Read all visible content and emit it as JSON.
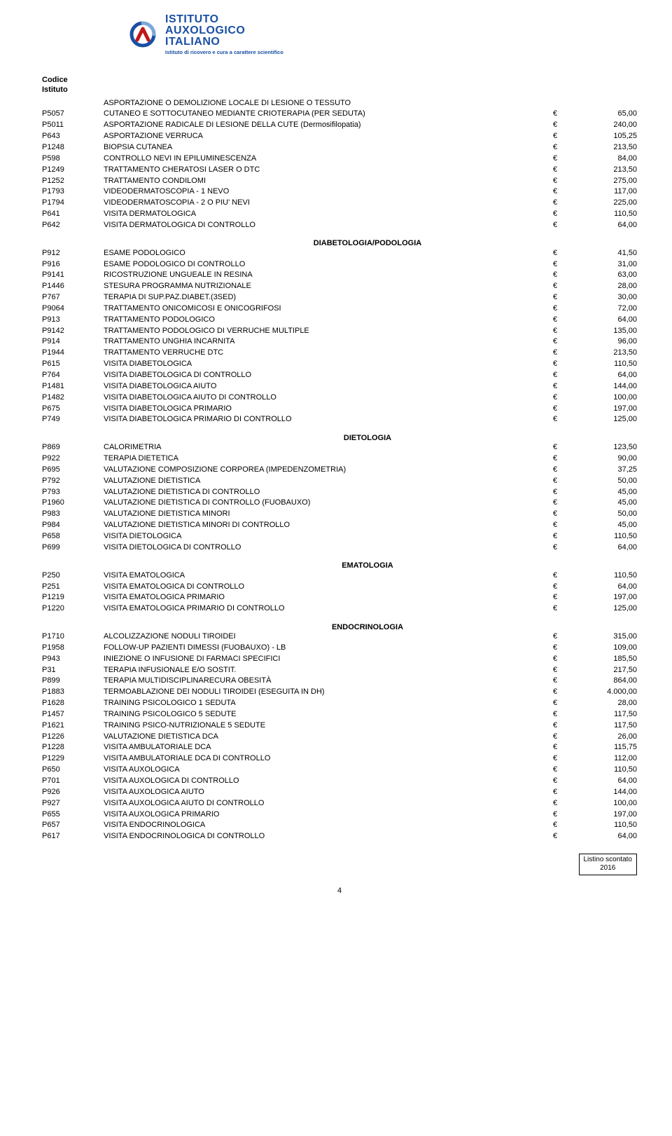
{
  "logo": {
    "line1": "ISTITUTO",
    "line2": "AUXOLOGICO",
    "line3": "ITALIANO",
    "tagline": "Istituto di ricovero e cura a carattere scientifico",
    "arc_color": "#1a4fa3",
    "arrow_color": "#c01818"
  },
  "header": {
    "label1": "Codice",
    "label2": "Istituto"
  },
  "sections": [
    {
      "title": "",
      "rows": [
        {
          "code": "",
          "desc": "ASPORTAZIONE O DEMOLIZIONE LOCALE DI LESIONE O TESSUTO",
          "eur": "",
          "amount": ""
        },
        {
          "code": "P5057",
          "desc": "CUTANEO E SOTTOCUTANEO MEDIANTE CRIOTERAPIA    (PER SEDUTA)",
          "eur": "€",
          "amount": "65,00"
        },
        {
          "code": "P5011",
          "desc": "ASPORTAZIONE RADICALE DI LESIONE DELLA CUTE (Dermosifilopatia)",
          "eur": "€",
          "amount": "240,00"
        },
        {
          "code": "P643",
          "desc": "ASPORTAZIONE VERRUCA",
          "eur": "€",
          "amount": "105,25"
        },
        {
          "code": "P1248",
          "desc": "BIOPSIA CUTANEA",
          "eur": "€",
          "amount": "213,50"
        },
        {
          "code": "P598",
          "desc": "CONTROLLO NEVI IN EPILUMINESCENZA",
          "eur": "€",
          "amount": "84,00"
        },
        {
          "code": "P1249",
          "desc": "TRATTAMENTO CHERATOSI  LASER O DTC",
          "eur": "€",
          "amount": "213,50"
        },
        {
          "code": "P1252",
          "desc": "TRATTAMENTO CONDILOMI",
          "eur": "€",
          "amount": "275,00"
        },
        {
          "code": "P1793",
          "desc": "VIDEODERMATOSCOPIA - 1 NEVO",
          "eur": "€",
          "amount": "117,00"
        },
        {
          "code": "P1794",
          "desc": "VIDEODERMATOSCOPIA - 2 O PIU' NEVI",
          "eur": "€",
          "amount": "225,00"
        },
        {
          "code": "P641",
          "desc": "VISITA DERMATOLOGICA",
          "eur": "€",
          "amount": "110,50"
        },
        {
          "code": "P642",
          "desc": "VISITA DERMATOLOGICA DI CONTROLLO",
          "eur": "€",
          "amount": "64,00"
        }
      ]
    },
    {
      "title": "DIABETOLOGIA/PODOLOGIA",
      "rows": [
        {
          "code": "P912",
          "desc": "ESAME PODOLOGICO",
          "eur": "€",
          "amount": "41,50"
        },
        {
          "code": "P916",
          "desc": "ESAME PODOLOGICO DI CONTROLLO",
          "eur": "€",
          "amount": "31,00"
        },
        {
          "code": "P9141",
          "desc": "RICOSTRUZIONE UNGUEALE IN RESINA",
          "eur": "€",
          "amount": "63,00"
        },
        {
          "code": "P1446",
          "desc": "STESURA PROGRAMMA NUTRIZIONALE",
          "eur": "€",
          "amount": "28,00"
        },
        {
          "code": "P767",
          "desc": "TERAPIA DI SUP.PAZ.DIABET.(3SED)",
          "eur": "€",
          "amount": "30,00"
        },
        {
          "code": "P9064",
          "desc": "TRATTAMENTO ONICOMICOSI E ONICOGRIFOSI",
          "eur": "€",
          "amount": "72,00"
        },
        {
          "code": "P913",
          "desc": "TRATTAMENTO PODOLOGICO",
          "eur": "€",
          "amount": "64,00"
        },
        {
          "code": "P9142",
          "desc": "TRATTAMENTO PODOLOGICO DI VERRUCHE MULTIPLE",
          "eur": "€",
          "amount": "135,00"
        },
        {
          "code": "P914",
          "desc": "TRATTAMENTO UNGHIA INCARNITA",
          "eur": "€",
          "amount": "96,00"
        },
        {
          "code": "P1944",
          "desc": "TRATTAMENTO VERRUCHE DTC",
          "eur": "€",
          "amount": "213,50"
        },
        {
          "code": "P615",
          "desc": "VISITA DIABETOLOGICA",
          "eur": "€",
          "amount": "110,50"
        },
        {
          "code": "P764",
          "desc": "VISITA DIABETOLOGICA DI CONTROLLO",
          "eur": "€",
          "amount": "64,00"
        },
        {
          "code": "P1481",
          "desc": "VISITA DIABETOLOGICA AIUTO",
          "eur": "€",
          "amount": "144,00"
        },
        {
          "code": "P1482",
          "desc": "VISITA DIABETOLOGICA AIUTO DI CONTROLLO",
          "eur": "€",
          "amount": "100,00"
        },
        {
          "code": "P675",
          "desc": "VISITA DIABETOLOGICA PRIMARIO",
          "eur": "€",
          "amount": "197,00"
        },
        {
          "code": "P749",
          "desc": "VISITA DIABETOLOGICA PRIMARIO DI CONTROLLO",
          "eur": "€",
          "amount": "125,00"
        }
      ]
    },
    {
      "title": "DIETOLOGIA",
      "rows": [
        {
          "code": "P869",
          "desc": "CALORIMETRIA",
          "eur": "€",
          "amount": "123,50"
        },
        {
          "code": "P922",
          "desc": "TERAPIA DIETETICA",
          "eur": "€",
          "amount": "90,00"
        },
        {
          "code": "P695",
          "desc": "VALUTAZIONE COMPOSIZIONE CORPOREA (IMPEDENZOMETRIA)",
          "eur": "€",
          "amount": "37,25"
        },
        {
          "code": "P792",
          "desc": "VALUTAZIONE DIETISTICA",
          "eur": "€",
          "amount": "50,00"
        },
        {
          "code": "P793",
          "desc": "VALUTAZIONE DIETISTICA DI CONTROLLO",
          "eur": "€",
          "amount": "45,00"
        },
        {
          "code": "P1960",
          "desc": "VALUTAZIONE DIETISTICA DI CONTROLLO (FUOBAUXO)",
          "eur": "€",
          "amount": "45,00"
        },
        {
          "code": "P983",
          "desc": "VALUTAZIONE DIETISTICA MINORI",
          "eur": "€",
          "amount": "50,00"
        },
        {
          "code": "P984",
          "desc": "VALUTAZIONE DIETISTICA MINORI DI CONTROLLO",
          "eur": "€",
          "amount": "45,00"
        },
        {
          "code": "P658",
          "desc": "VISITA DIETOLOGICA",
          "eur": "€",
          "amount": "110,50"
        },
        {
          "code": "P699",
          "desc": "VISITA DIETOLOGICA DI CONTROLLO",
          "eur": "€",
          "amount": "64,00"
        }
      ]
    },
    {
      "title": "EMATOLOGIA",
      "rows": [
        {
          "code": "P250",
          "desc": "VISITA EMATOLOGICA",
          "eur": "€",
          "amount": "110,50"
        },
        {
          "code": "P251",
          "desc": "VISITA EMATOLOGICA DI CONTROLLO",
          "eur": "€",
          "amount": "64,00"
        },
        {
          "code": "P1219",
          "desc": "VISITA EMATOLOGICA PRIMARIO",
          "eur": "€",
          "amount": "197,00"
        },
        {
          "code": "P1220",
          "desc": "VISITA EMATOLOGICA PRIMARIO DI CONTROLLO",
          "eur": "€",
          "amount": "125,00"
        }
      ]
    },
    {
      "title": "ENDOCRINOLOGIA",
      "rows": [
        {
          "code": "P1710",
          "desc": "ALCOLIZZAZIONE NODULI TIROIDEI",
          "eur": "€",
          "amount": "315,00"
        },
        {
          "code": "P1958",
          "desc": "FOLLOW-UP PAZIENTI DIMESSI (FUOBAUXO) - LB",
          "eur": "€",
          "amount": "109,00"
        },
        {
          "code": "P943",
          "desc": "INIEZIONE O INFUSIONE DI FARMACI SPECIFICI",
          "eur": "€",
          "amount": "185,50"
        },
        {
          "code": "P31",
          "desc": "TERAPIA INFUSIONALE E/O SOSTIT.",
          "eur": "€",
          "amount": "217,50"
        },
        {
          "code": "P899",
          "desc": "TERAPIA MULTIDISCIPLINARECURA OBESITÀ",
          "eur": "€",
          "amount": "864,00"
        },
        {
          "code": "P1883",
          "desc": "TERMOABLAZIONE DEI NODULI TIROIDEI (ESEGUITA IN DH)",
          "eur": "€",
          "amount": "4.000,00"
        },
        {
          "code": "P1628",
          "desc": "TRAINING PSICOLOGICO 1 SEDUTA",
          "eur": "€",
          "amount": "28,00"
        },
        {
          "code": "P1457",
          "desc": "TRAINING PSICOLOGICO 5 SEDUTE",
          "eur": "€",
          "amount": "117,50"
        },
        {
          "code": "P1621",
          "desc": "TRAINING PSICO-NUTRIZIONALE 5 SEDUTE",
          "eur": "€",
          "amount": "117,50"
        },
        {
          "code": "P1226",
          "desc": "VALUTAZIONE DIETISTICA DCA",
          "eur": "€",
          "amount": "26,00"
        },
        {
          "code": "P1228",
          "desc": "VISITA AMBULATORIALE DCA",
          "eur": "€",
          "amount": "115,75"
        },
        {
          "code": "P1229",
          "desc": "VISITA AMBULATORIALE DCA DI CONTROLLO",
          "eur": "€",
          "amount": "112,00"
        },
        {
          "code": "P650",
          "desc": "VISITA AUXOLOGICA",
          "eur": "€",
          "amount": "110,50"
        },
        {
          "code": "P701",
          "desc": "VISITA AUXOLOGICA DI CONTROLLO",
          "eur": "€",
          "amount": "64,00"
        },
        {
          "code": "P926",
          "desc": "VISITA AUXOLOGICA AIUTO",
          "eur": "€",
          "amount": "144,00"
        },
        {
          "code": "P927",
          "desc": "VISITA AUXOLOGICA AIUTO DI CONTROLLO",
          "eur": "€",
          "amount": "100,00"
        },
        {
          "code": "P655",
          "desc": "VISITA AUXOLOGICA PRIMARIO",
          "eur": "€",
          "amount": "197,00"
        },
        {
          "code": "P657",
          "desc": "VISITA ENDOCRINOLOGICA",
          "eur": "€",
          "amount": "110,50"
        },
        {
          "code": "P617",
          "desc": "VISITA ENDOCRINOLOGICA DI CONTROLLO",
          "eur": "€",
          "amount": "64,00"
        }
      ]
    }
  ],
  "footer": {
    "line1": "Listino scontato",
    "line2": "2016"
  },
  "page_number": "4"
}
